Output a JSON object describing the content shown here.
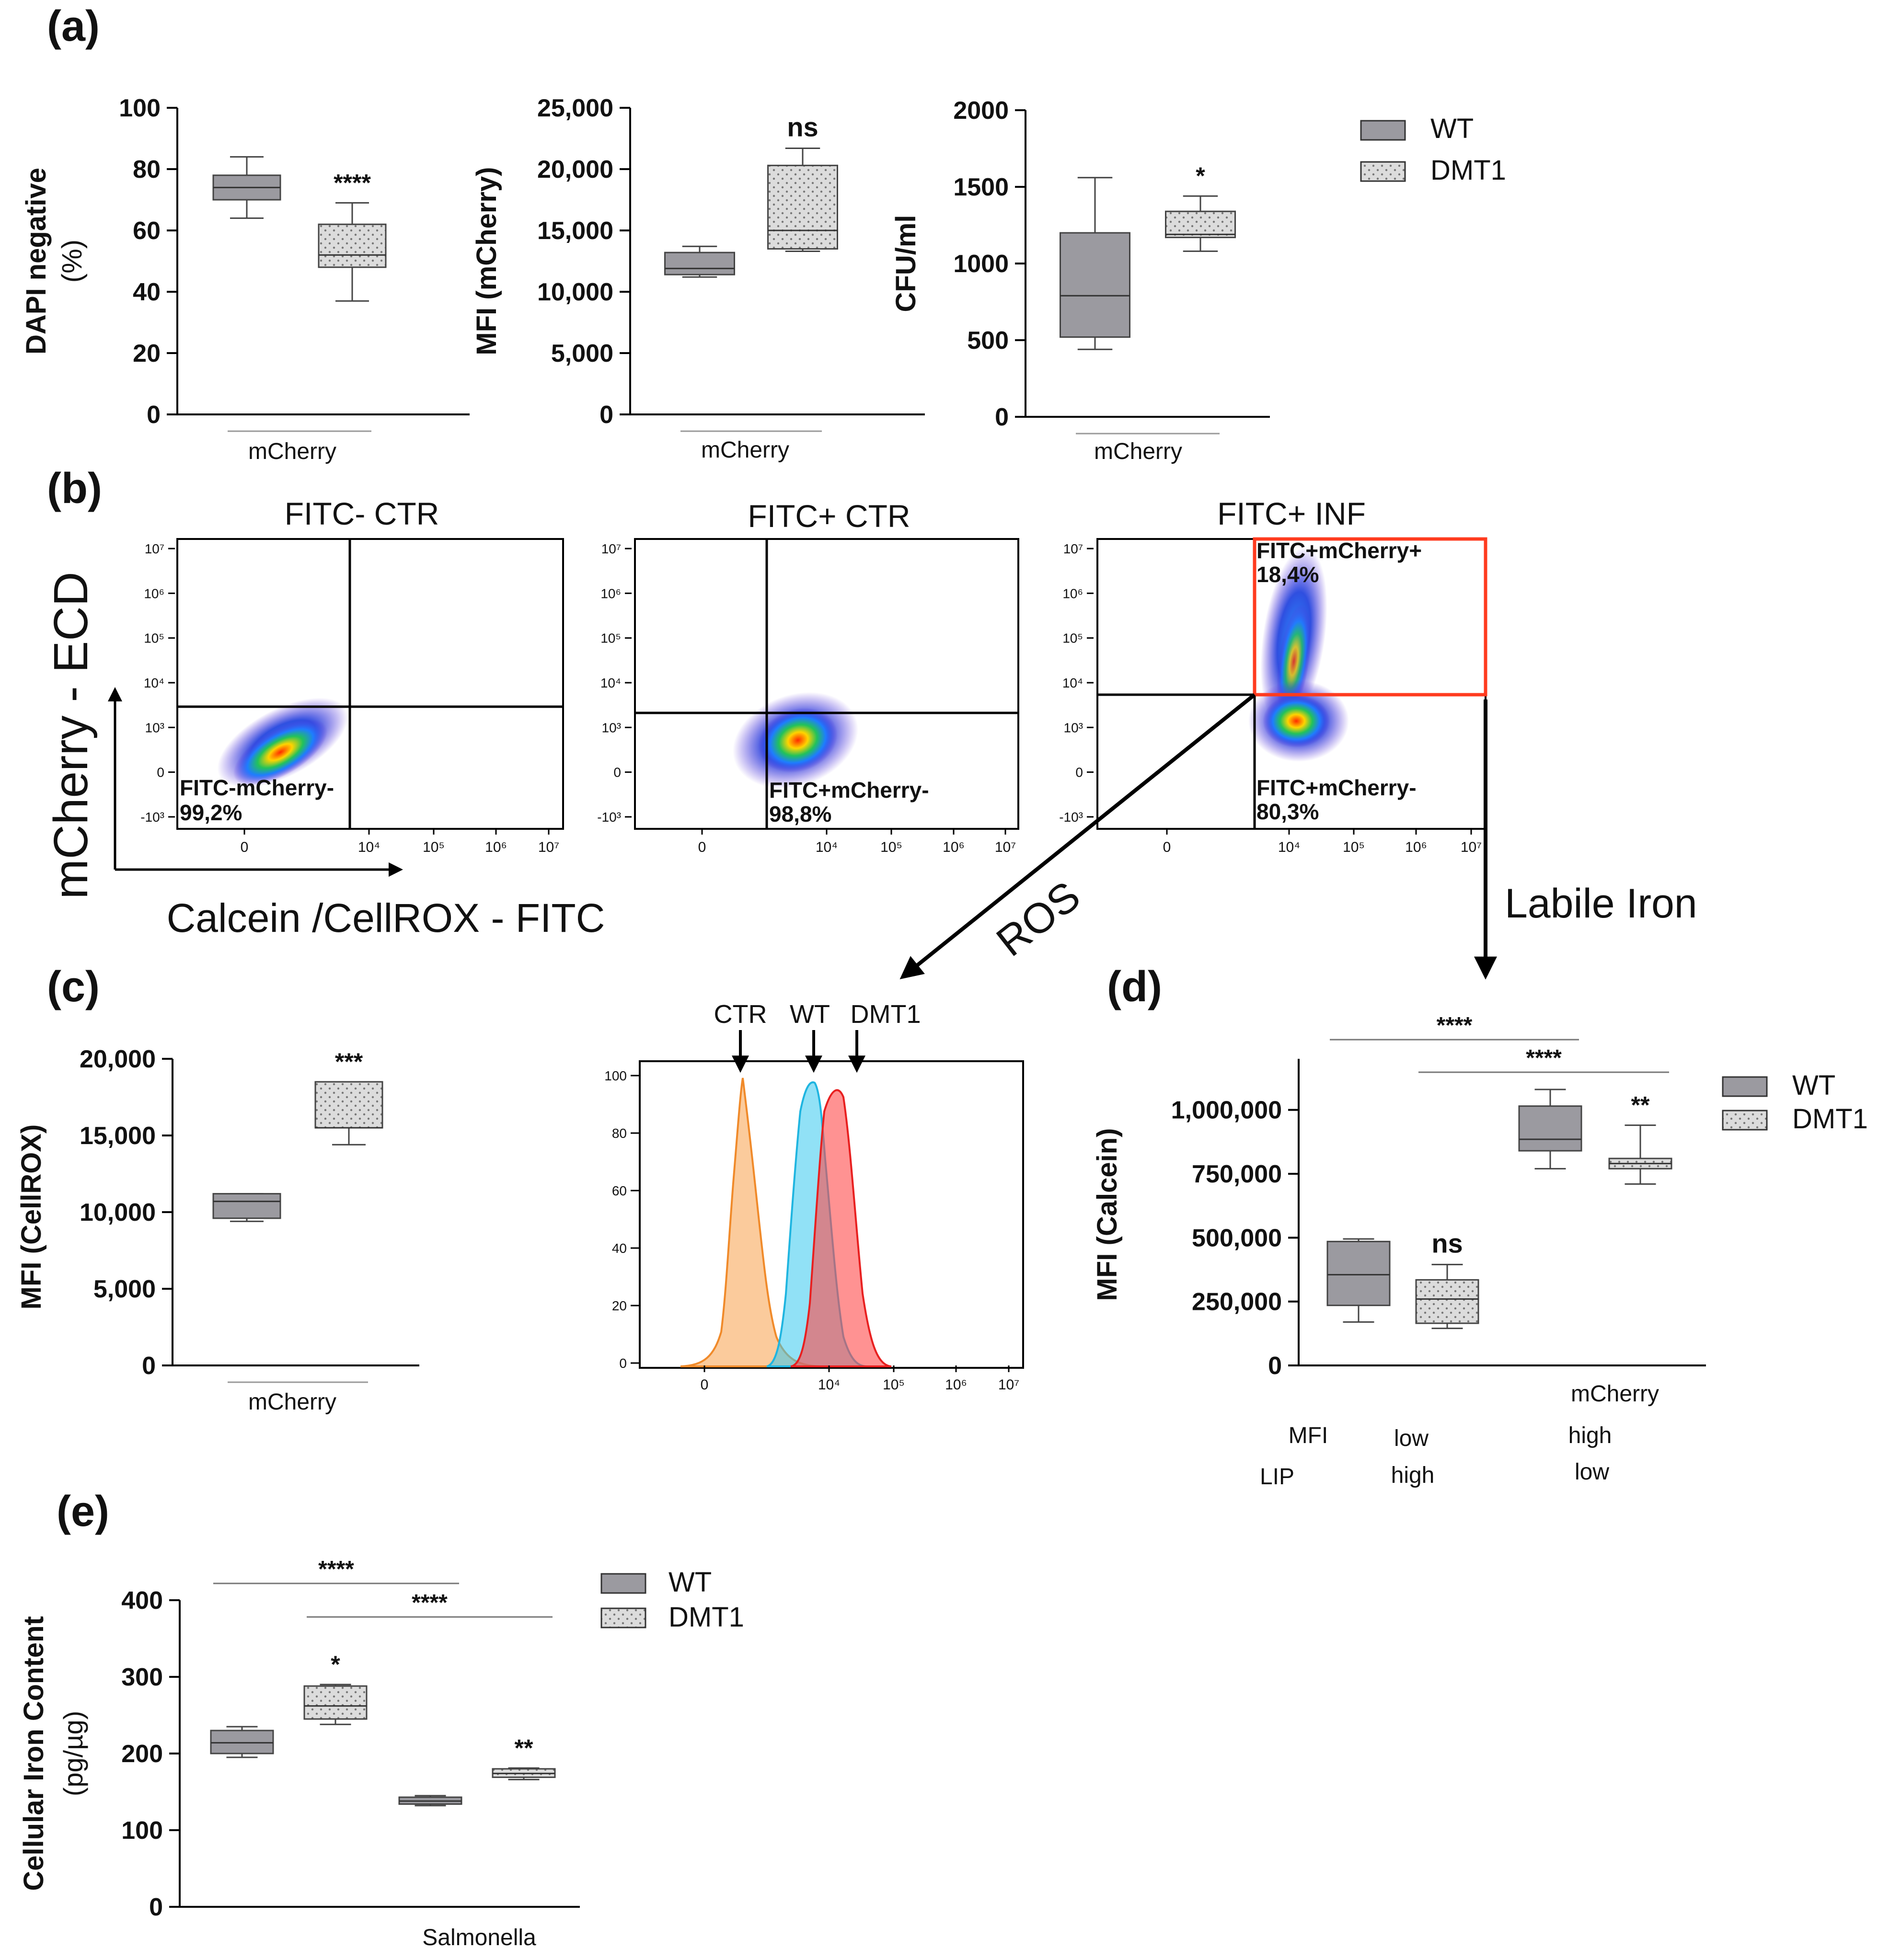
{
  "colors": {
    "wt": "#9b9aa0",
    "dmt1": "#dcdcdc",
    "gate": "#ff3b1f",
    "ctr_hist": "#f7a04a",
    "wt_hist": "#37c9ee",
    "dmt1_hist": "#ff4a4a"
  },
  "panel_labels": [
    "(a)",
    "(b)",
    "(c)",
    "(d)",
    "(e)"
  ],
  "legend": {
    "wt": "WT",
    "dmt1": "DMT1"
  },
  "panel_a": {
    "dapi": {
      "ylabel1": "DAPI negative",
      "ylabel2": "(%)",
      "xlabel": "mCherry",
      "ylim": [
        0,
        100
      ],
      "ticks": [
        "0",
        "20",
        "40",
        "60",
        "80",
        "100"
      ],
      "tickvals": [
        0,
        20,
        40,
        60,
        80,
        100
      ]
    },
    "mfi": {
      "ylabel": "MFI (mCherry)",
      "xlabel": "mCherry",
      "ylim": [
        0,
        25000
      ],
      "ticks": [
        "0",
        "5,000",
        "10,000",
        "15,000",
        "20,000",
        "25,000"
      ],
      "tickvals": [
        0,
        5000,
        10000,
        15000,
        20000,
        25000
      ]
    },
    "cfu": {
      "ylabel": "CFU/ml",
      "xlabel": "mCherry",
      "ylim": [
        0,
        2000
      ],
      "ticks": [
        "0",
        "500",
        "1000",
        "1500",
        "2000"
      ],
      "tickvals": [
        0,
        500,
        1000,
        1500,
        2000
      ]
    }
  },
  "panel_b": {
    "titles": [
      "FITC- CTR",
      "FITC+ CTR",
      "FITC+ INF"
    ],
    "quadrant_labels": [
      {
        "name": "FITC-mCherry-",
        "pct": "99,2%"
      },
      {
        "name": "FITC+mCherry-",
        "pct": "98,8%"
      },
      {
        "name": "FITC+mCherry-",
        "pct": "80,3%"
      }
    ],
    "gate_label": {
      "name": "FITC+mCherry+",
      "pct": "18,4%"
    },
    "y_axis_label": "mCherry - ECD",
    "x_axis_label": "Calcein /CellROX - FITC",
    "y_ticks": [
      "10⁷",
      "10⁶",
      "10⁵",
      "10⁴",
      "10³",
      "0",
      "-10³"
    ],
    "x_ticks": [
      "0",
      "10⁴",
      "10⁵",
      "10⁶",
      "10⁷"
    ],
    "arrow_labels": {
      "ros": "ROS",
      "labile": "Labile Iron"
    }
  },
  "panel_c": {
    "bar": {
      "ylabel": "MFI (CellROX)",
      "xlabel": "mCherry",
      "ylim": [
        0,
        20000
      ],
      "ticks": [
        "0",
        "5,000",
        "10,000",
        "15,000",
        "20,000"
      ],
      "tickvals": [
        0,
        5000,
        10000,
        15000,
        20000
      ]
    },
    "hist": {
      "markers": [
        "CTR",
        "WT",
        "DMT1"
      ],
      "y_ticks": [
        "0",
        "20",
        "40",
        "60",
        "80",
        "100"
      ],
      "x_ticks": [
        "0",
        "10⁴",
        "10⁵",
        "10⁶",
        "10⁷"
      ]
    }
  },
  "panel_d": {
    "ylabel": "MFI (Calcein)",
    "xlabel": "mCherry",
    "ylim": [
      0,
      1200000
    ],
    "ticks": [
      "0",
      "250,000",
      "500,000",
      "750,000",
      "1,000,000"
    ],
    "tickvals": [
      0,
      250000,
      500000,
      750000,
      1000000
    ],
    "table": {
      "mfi_label": "MFI",
      "lip_label": "LIP",
      "mfi_low": "low",
      "mfi_high": "high",
      "lip_high": "high",
      "lip_low": "low"
    }
  },
  "panel_e": {
    "ylabel1": "Cellular Iron Content",
    "ylabel2": "(pg/µg)",
    "xlabel": "Salmonella",
    "ylim": [
      0,
      400
    ],
    "ticks": [
      "0",
      "100",
      "200",
      "300",
      "400"
    ],
    "tickvals": [
      0,
      100,
      200,
      300,
      400
    ]
  },
  "chart_data": [
    {
      "type": "box",
      "id": "a1",
      "title": "DAPI negative (%)",
      "xlabel": "mCherry",
      "ylim": [
        0,
        100
      ],
      "series": [
        {
          "name": "WT",
          "min": 64,
          "q1": 70,
          "median": 74,
          "q3": 78,
          "max": 84
        },
        {
          "name": "DMT1",
          "min": 37,
          "q1": 48,
          "median": 52,
          "q3": 62,
          "max": 69
        }
      ],
      "annotations": [
        {
          "target": "DMT1",
          "text": "****"
        }
      ]
    },
    {
      "type": "box",
      "id": "a2",
      "title": "MFI (mCherry)",
      "xlabel": "mCherry",
      "ylim": [
        0,
        25000
      ],
      "series": [
        {
          "name": "WT",
          "min": 11200,
          "q1": 11400,
          "median": 11900,
          "q3": 13200,
          "max": 13700
        },
        {
          "name": "DMT1",
          "min": 13300,
          "q1": 13500,
          "median": 15000,
          "q3": 20300,
          "max": 21700
        }
      ],
      "annotations": [
        {
          "target": "DMT1",
          "text": "ns"
        }
      ]
    },
    {
      "type": "box",
      "id": "a3",
      "title": "CFU/ml",
      "xlabel": "mCherry",
      "ylim": [
        0,
        2000
      ],
      "series": [
        {
          "name": "WT",
          "min": 440,
          "q1": 520,
          "median": 790,
          "q3": 1200,
          "max": 1560
        },
        {
          "name": "DMT1",
          "min": 1080,
          "q1": 1170,
          "median": 1190,
          "q3": 1340,
          "max": 1440
        }
      ],
      "annotations": [
        {
          "target": "DMT1",
          "text": "*"
        }
      ]
    },
    {
      "type": "box",
      "id": "c1",
      "title": "MFI (CellROX)",
      "xlabel": "mCherry",
      "ylim": [
        0,
        20000
      ],
      "series": [
        {
          "name": "WT",
          "min": 9400,
          "q1": 9600,
          "median": 10700,
          "q3": 11200,
          "max": 11200
        },
        {
          "name": "DMT1",
          "min": 14400,
          "q1": 15500,
          "median": 15500,
          "q3": 18500,
          "max": 18500
        }
      ],
      "annotations": [
        {
          "target": "DMT1",
          "text": "***"
        }
      ]
    },
    {
      "type": "box",
      "id": "d1",
      "title": "MFI (Calcein)",
      "xlabel": "mCherry",
      "ylim": [
        0,
        1200000
      ],
      "series": [
        {
          "name": "WT low/high",
          "group": "WT",
          "min": 170000,
          "q1": 235000,
          "median": 355000,
          "q3": 485000,
          "max": 495000
        },
        {
          "name": "DMT1 low/high",
          "group": "DMT1",
          "min": 145000,
          "q1": 165000,
          "median": 260000,
          "q3": 335000,
          "max": 395000
        },
        {
          "name": "WT high/low",
          "group": "WT",
          "min": 770000,
          "q1": 840000,
          "median": 885000,
          "q3": 1015000,
          "max": 1080000
        },
        {
          "name": "DMT1 high/low",
          "group": "DMT1",
          "min": 710000,
          "q1": 770000,
          "median": 790000,
          "q3": 810000,
          "max": 940000
        }
      ],
      "annotations": [
        {
          "target": "DMT1 low/high",
          "text": "ns"
        },
        {
          "target": "DMT1 high/low",
          "text": "**"
        }
      ],
      "brackets": [
        {
          "from": 0,
          "to": 2,
          "text": "****"
        },
        {
          "from": 1,
          "to": 3,
          "text": "****"
        }
      ]
    },
    {
      "type": "box",
      "id": "e1",
      "title": "Cellular Iron Content (pg/µg)",
      "xlabel": "Salmonella",
      "ylim": [
        0,
        400
      ],
      "series": [
        {
          "name": "WT ctrl",
          "group": "WT",
          "min": 195,
          "q1": 200,
          "median": 214,
          "q3": 230,
          "max": 235
        },
        {
          "name": "DMT1 ctrl",
          "group": "DMT1",
          "min": 238,
          "q1": 245,
          "median": 262,
          "q3": 288,
          "max": 290
        },
        {
          "name": "WT Salmonella",
          "group": "WT",
          "min": 132,
          "q1": 134,
          "median": 138,
          "q3": 143,
          "max": 145
        },
        {
          "name": "DMT1 Salmonella",
          "group": "DMT1",
          "min": 166,
          "q1": 169,
          "median": 174,
          "q3": 180,
          "max": 181
        }
      ],
      "annotations": [
        {
          "target": "DMT1 ctrl",
          "text": "*"
        },
        {
          "target": "DMT1 Salmonella",
          "text": "**"
        }
      ],
      "brackets": [
        {
          "from": 0,
          "to": 2,
          "text": "****"
        },
        {
          "from": 1,
          "to": 3,
          "text": "****"
        }
      ]
    }
  ]
}
